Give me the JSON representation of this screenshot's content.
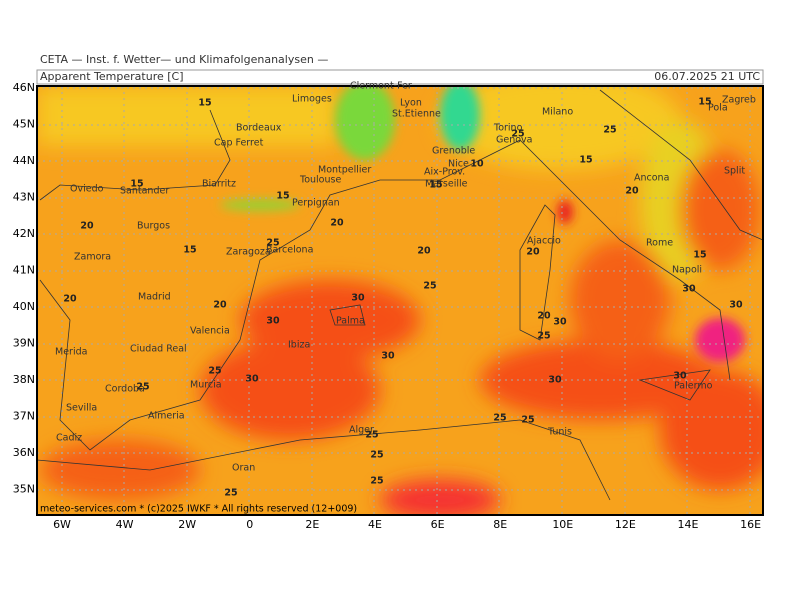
{
  "header": {
    "source": "CETA — Inst. f. Wetter— und Klimafolgenanalysen —",
    "title": "Apparent Temperature [C]",
    "datetime": "06.07.2025  21 UTC"
  },
  "map": {
    "lat_labels": [
      "46N",
      "45N",
      "44N",
      "43N",
      "42N",
      "41N",
      "40N",
      "39N",
      "38N",
      "37N",
      "36N",
      "35N"
    ],
    "lon_labels": [
      "6W",
      "4W",
      "2W",
      "0",
      "2E",
      "4E",
      "6E",
      "8E",
      "10E",
      "12E",
      "14E",
      "16E"
    ],
    "cities": [
      "Limoges",
      "Clermont-Fer",
      "Lyon",
      "St.Etienne",
      "Grenoble",
      "Milano",
      "Torino",
      "Genova",
      "Bordeaux",
      "Cap Ferret",
      "Montpellier",
      "Toulouse",
      "Nice",
      "Aix-Prov.",
      "Marseille",
      "Oviedo",
      "Santander",
      "Biarritz",
      "Perpignan",
      "Burgos",
      "Zaragoza",
      "Barcelona",
      "Zamora",
      "Madrid",
      "Valencia",
      "Ciudad Real",
      "Merida",
      "Palma",
      "Ibiza",
      "Cordoba",
      "Murcia",
      "Sevilla",
      "Almeria",
      "Cadiz",
      "Oran",
      "Alger",
      "Tunis",
      "Ajaccio",
      "Rome",
      "Napoli",
      "Ancona",
      "Split",
      "Zagreb",
      "Pola",
      "Palermo"
    ],
    "contour_labels": [
      "15",
      "25",
      "15",
      "20",
      "15",
      "10",
      "15",
      "20",
      "20",
      "25",
      "15",
      "20",
      "20",
      "15",
      "25",
      "20",
      "25",
      "20",
      "30",
      "30",
      "30",
      "20",
      "30",
      "25",
      "30",
      "30",
      "30",
      "25",
      "30",
      "25",
      "25",
      "25",
      "30",
      "25",
      "25",
      "25",
      "25",
      "15",
      "15"
    ],
    "footer": "meteo-services.com * (c)2025 IWKF * All rights reserved (12+009)"
  }
}
